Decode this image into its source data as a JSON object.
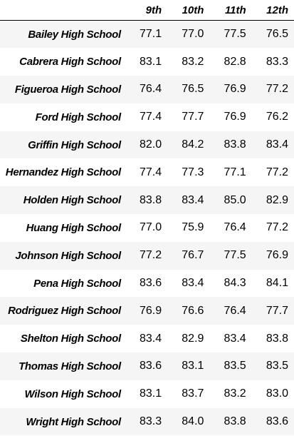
{
  "table": {
    "index_header": "",
    "columns": [
      "9th",
      "10th",
      "11th",
      "12th"
    ],
    "rows": [
      {
        "school": "Bailey High School",
        "values": [
          "77.1",
          "77.0",
          "77.5",
          "76.5"
        ]
      },
      {
        "school": "Cabrera High School",
        "values": [
          "83.1",
          "83.2",
          "82.8",
          "83.3"
        ]
      },
      {
        "school": "Figueroa High School",
        "values": [
          "76.4",
          "76.5",
          "76.9",
          "77.2"
        ]
      },
      {
        "school": "Ford High School",
        "values": [
          "77.4",
          "77.7",
          "76.9",
          "76.2"
        ]
      },
      {
        "school": "Griffin High School",
        "values": [
          "82.0",
          "84.2",
          "83.8",
          "83.4"
        ]
      },
      {
        "school": "Hernandez High School",
        "values": [
          "77.4",
          "77.3",
          "77.1",
          "77.2"
        ]
      },
      {
        "school": "Holden High School",
        "values": [
          "83.8",
          "83.4",
          "85.0",
          "82.9"
        ]
      },
      {
        "school": "Huang High School",
        "values": [
          "77.0",
          "75.9",
          "76.4",
          "77.2"
        ]
      },
      {
        "school": "Johnson High School",
        "values": [
          "77.2",
          "76.7",
          "77.5",
          "76.9"
        ]
      },
      {
        "school": "Pena High School",
        "values": [
          "83.6",
          "83.4",
          "84.3",
          "84.1"
        ]
      },
      {
        "school": "Rodriguez High School",
        "values": [
          "76.9",
          "76.6",
          "76.4",
          "77.7"
        ]
      },
      {
        "school": "Shelton High School",
        "values": [
          "83.4",
          "82.9",
          "83.4",
          "83.8"
        ]
      },
      {
        "school": "Thomas High School",
        "values": [
          "83.6",
          "83.1",
          "83.5",
          "83.5"
        ]
      },
      {
        "school": "Wilson High School",
        "values": [
          "83.1",
          "83.7",
          "83.2",
          "83.0"
        ]
      },
      {
        "school": "Wright High School",
        "values": [
          "83.3",
          "84.0",
          "83.8",
          "83.6"
        ]
      }
    ]
  }
}
